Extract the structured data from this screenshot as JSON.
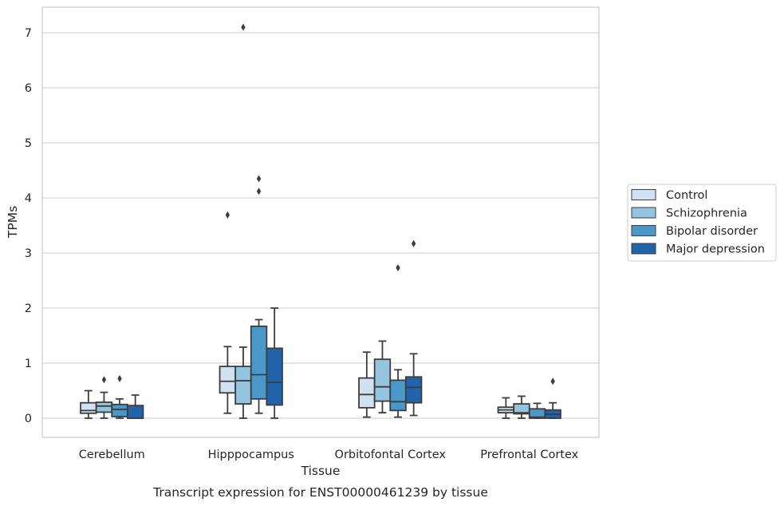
{
  "caption": "Transcript expression for ENST00000461239 by tissue",
  "chart_data": {
    "type": "box",
    "xlabel": "Tissue",
    "ylabel": "TPMs",
    "ylim": [
      -0.35,
      7.5
    ],
    "yticks": [
      0,
      1,
      2,
      3,
      4,
      5,
      6,
      7
    ],
    "grid": "horizontal",
    "legend_position": "right-center",
    "categories": [
      "Cerebellum",
      "Hipppocampus",
      "Orbitofontal Cortex",
      "Prefrontal Cortex"
    ],
    "series": [
      {
        "name": "Control",
        "color": "#d0e1f2",
        "boxes": [
          {
            "whislo": 0.0,
            "q1": 0.09,
            "med": 0.14,
            "q3": 0.28,
            "whishi": 0.5,
            "fliers": []
          },
          {
            "whislo": 0.09,
            "q1": 0.46,
            "med": 0.67,
            "q3": 0.94,
            "whishi": 1.3,
            "fliers": [
              3.69
            ]
          },
          {
            "whislo": 0.02,
            "q1": 0.19,
            "med": 0.43,
            "q3": 0.73,
            "whishi": 1.2,
            "fliers": []
          },
          {
            "whislo": 0.0,
            "q1": 0.1,
            "med": 0.15,
            "q3": 0.2,
            "whishi": 0.37,
            "fliers": []
          }
        ]
      },
      {
        "name": "Schizophrenia",
        "color": "#94c4df",
        "boxes": [
          {
            "whislo": 0.0,
            "q1": 0.11,
            "med": 0.22,
            "q3": 0.29,
            "whishi": 0.47,
            "fliers": [
              0.7
            ]
          },
          {
            "whislo": 0.0,
            "q1": 0.26,
            "med": 0.68,
            "q3": 0.94,
            "whishi": 1.29,
            "fliers": [
              7.1
            ]
          },
          {
            "whislo": 0.1,
            "q1": 0.31,
            "med": 0.57,
            "q3": 1.07,
            "whishi": 1.4,
            "fliers": []
          },
          {
            "whislo": 0.0,
            "q1": 0.08,
            "med": 0.1,
            "q3": 0.26,
            "whishi": 0.4,
            "fliers": []
          }
        ]
      },
      {
        "name": "Bipolar disorder",
        "color": "#4a98c9",
        "boxes": [
          {
            "whislo": 0.0,
            "q1": 0.03,
            "med": 0.16,
            "q3": 0.25,
            "whishi": 0.35,
            "fliers": [
              0.72
            ]
          },
          {
            "whislo": 0.09,
            "q1": 0.35,
            "med": 0.79,
            "q3": 1.67,
            "whishi": 1.79,
            "fliers": [
              4.12,
              4.35
            ]
          },
          {
            "whislo": 0.02,
            "q1": 0.14,
            "med": 0.3,
            "q3": 0.69,
            "whishi": 0.88,
            "fliers": [
              2.73
            ]
          },
          {
            "whislo": 0.0,
            "q1": 0.0,
            "med": 0.02,
            "q3": 0.17,
            "whishi": 0.27,
            "fliers": []
          }
        ]
      },
      {
        "name": "Major depression",
        "color": "#2164ab",
        "boxes": [
          {
            "whislo": 0.0,
            "q1": 0.0,
            "med": 0.0,
            "q3": 0.23,
            "whishi": 0.42,
            "fliers": []
          },
          {
            "whislo": 0.0,
            "q1": 0.24,
            "med": 0.65,
            "q3": 1.27,
            "whishi": 2.0,
            "fliers": []
          },
          {
            "whislo": 0.05,
            "q1": 0.28,
            "med": 0.56,
            "q3": 0.75,
            "whishi": 1.17,
            "fliers": [
              3.17
            ]
          },
          {
            "whislo": 0.0,
            "q1": 0.0,
            "med": 0.07,
            "q3": 0.15,
            "whishi": 0.28,
            "fliers": [
              0.67
            ]
          }
        ]
      }
    ]
  }
}
